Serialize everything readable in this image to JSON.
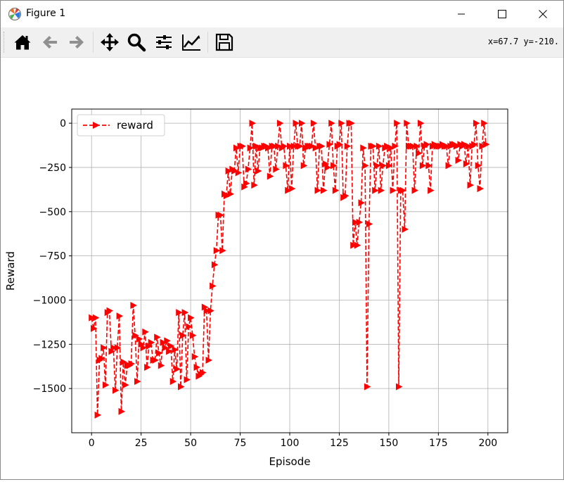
{
  "window": {
    "title": "Figure 1"
  },
  "toolbar": {
    "buttons": [
      {
        "name": "home-icon",
        "tooltip": "Home"
      },
      {
        "name": "back-arrow-icon",
        "tooltip": "Back"
      },
      {
        "name": "forward-arrow-icon",
        "tooltip": "Forward"
      },
      {
        "name": "pan-icon",
        "tooltip": "Pan"
      },
      {
        "name": "zoom-icon",
        "tooltip": "Zoom"
      },
      {
        "name": "configure-subplots-icon",
        "tooltip": "Subplots"
      },
      {
        "name": "edit-axis-icon",
        "tooltip": "Customize"
      },
      {
        "name": "save-icon",
        "tooltip": "Save"
      }
    ],
    "coords": "x=67.7 y=-210."
  },
  "chart_data": {
    "type": "line",
    "title": "",
    "xlabel": "Episode",
    "ylabel": "Reward",
    "xlim": [
      -10,
      210
    ],
    "ylim": [
      -1750,
      80
    ],
    "xticks": [
      0,
      25,
      50,
      75,
      100,
      125,
      150,
      175,
      200
    ],
    "xtick_labels": [
      "0",
      "25",
      "50",
      "75",
      "100",
      "125",
      "150",
      "175",
      "200"
    ],
    "yticks": [
      0,
      -250,
      -500,
      -750,
      -1000,
      -1250,
      -1500
    ],
    "ytick_labels": [
      "0",
      "−250",
      "−500",
      "−750",
      "−1000",
      "−1250",
      "−1500"
    ],
    "grid": true,
    "legend": "upper-left",
    "series": [
      {
        "name": "reward",
        "color": "#ff0000",
        "line_style": "dashed",
        "marker": "triangle-right",
        "x": [
          0,
          1,
          2,
          3,
          4,
          5,
          6,
          7,
          8,
          9,
          10,
          11,
          12,
          13,
          14,
          15,
          16,
          17,
          18,
          19,
          20,
          21,
          22,
          23,
          24,
          25,
          26,
          27,
          28,
          29,
          30,
          31,
          32,
          33,
          34,
          35,
          36,
          37,
          38,
          39,
          40,
          41,
          42,
          43,
          44,
          45,
          46,
          47,
          48,
          49,
          50,
          51,
          52,
          53,
          54,
          55,
          56,
          57,
          58,
          59,
          60,
          61,
          62,
          63,
          64,
          65,
          66,
          67,
          68,
          69,
          70,
          71,
          72,
          73,
          74,
          75,
          76,
          77,
          78,
          79,
          80,
          81,
          82,
          83,
          84,
          85,
          86,
          87,
          88,
          89,
          90,
          91,
          92,
          93,
          94,
          95,
          96,
          97,
          98,
          99,
          100,
          101,
          102,
          103,
          104,
          105,
          106,
          107,
          108,
          109,
          110,
          111,
          112,
          113,
          114,
          115,
          116,
          117,
          118,
          119,
          120,
          121,
          122,
          123,
          124,
          125,
          126,
          127,
          128,
          129,
          130,
          131,
          132,
          133,
          134,
          135,
          136,
          137,
          138,
          139,
          140,
          141,
          142,
          143,
          144,
          145,
          146,
          147,
          148,
          149,
          150,
          151,
          152,
          153,
          154,
          155,
          156,
          157,
          158,
          159,
          160,
          161,
          162,
          163,
          164,
          165,
          166,
          167,
          168,
          169,
          170,
          171,
          172,
          173,
          174,
          175,
          176,
          177,
          178,
          179,
          180,
          181,
          182,
          183,
          184,
          185,
          186,
          187,
          188,
          189,
          190,
          191,
          192,
          193,
          194,
          195,
          196,
          197,
          198,
          199
        ],
        "values": [
          -1100,
          -1160,
          -1100,
          -1650,
          -1340,
          -1330,
          -1270,
          -1480,
          -1070,
          -1060,
          -1290,
          -1270,
          -1510,
          -1270,
          -1090,
          -1630,
          -1350,
          -1480,
          -1370,
          -1370,
          -1360,
          -1030,
          -1200,
          -1460,
          -1220,
          -1250,
          -1270,
          -1180,
          -1380,
          -1260,
          -1240,
          -1340,
          -1340,
          -1210,
          -1300,
          -1370,
          -1240,
          -1270,
          -1230,
          -1290,
          -1260,
          -1460,
          -1280,
          -1390,
          -1070,
          -1490,
          -1200,
          -1070,
          -1450,
          -1150,
          -1100,
          -1200,
          -1320,
          -1380,
          -1430,
          -1420,
          -1410,
          -1040,
          -1060,
          -1340,
          -1060,
          -920,
          -800,
          -720,
          -520,
          -520,
          -720,
          -400,
          -410,
          -270,
          -400,
          -260,
          -270,
          -140,
          -280,
          -130,
          -130,
          -360,
          -340,
          -260,
          -140,
          0,
          -350,
          -130,
          -270,
          -140,
          -140,
          -130,
          -130,
          -140,
          -300,
          -130,
          -130,
          -260,
          -130,
          0,
          -140,
          -130,
          -240,
          -380,
          -130,
          -370,
          -130,
          0,
          -130,
          -130,
          0,
          -240,
          -140,
          -130,
          -130,
          -130,
          0,
          -140,
          -380,
          -130,
          -130,
          -380,
          -230,
          -250,
          -120,
          0,
          -240,
          -380,
          -130,
          -120,
          0,
          -420,
          -410,
          -130,
          0,
          0,
          -690,
          -560,
          -690,
          -560,
          -450,
          -140,
          -240,
          -1490,
          -570,
          -130,
          -130,
          -380,
          -240,
          -130,
          -380,
          -240,
          -140,
          -130,
          -240,
          -140,
          -380,
          -130,
          0,
          -1490,
          -380,
          -380,
          -600,
          0,
          -130,
          -130,
          -130,
          -380,
          -130,
          -170,
          0,
          -240,
          -130,
          -120,
          -240,
          -380,
          -130,
          -120,
          -130,
          -130,
          -130,
          -120,
          -130,
          -130,
          -240,
          -130,
          -120,
          -120,
          -130,
          -210,
          -120,
          -130,
          -120,
          -230,
          -130,
          -350,
          -130,
          -120,
          0,
          -240,
          -370,
          -130,
          0,
          -120
        ]
      }
    ]
  }
}
